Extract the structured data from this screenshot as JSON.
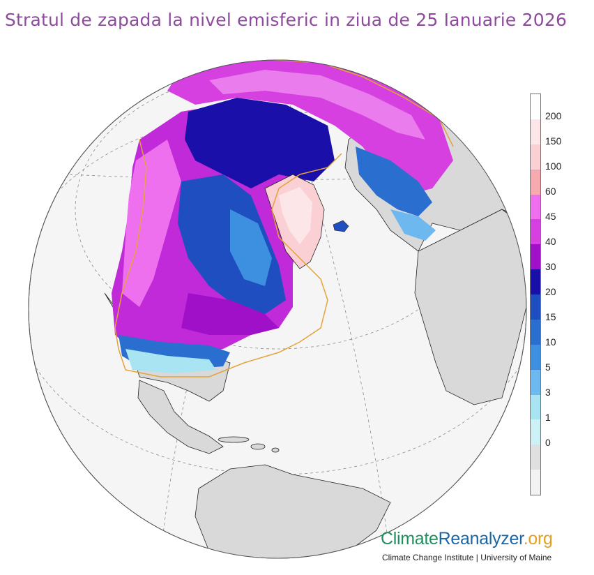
{
  "title": "Stratul de zapada la nivel emisferic in ziua de 25 Ianuarie 2026",
  "legend": {
    "labels": [
      "200",
      "150",
      "100",
      "60",
      "45",
      "40",
      "30",
      "20",
      "15",
      "10",
      "5",
      "3",
      "1",
      "0"
    ],
    "colors": [
      "#ffffff",
      "#fde6e8",
      "#fad0d4",
      "#f5aab0",
      "#ee70ee",
      "#d63fe0",
      "#a010c8",
      "#1a0fa8",
      "#1f4ec0",
      "#2a6fd0",
      "#3d8fdf",
      "#6db8ee",
      "#a8e4f2",
      "#cdf2f5",
      "#e0e0e0",
      "#f2f2f2"
    ]
  },
  "map": {
    "ocean_color": "#f5f5f5",
    "land_color": "#d9d9d9",
    "sea_ice_edge_color": "#e3a33a",
    "graticule_color": "#8a8a8a"
  },
  "brand": {
    "part1": "Climate",
    "part2": "Reanalyzer",
    "part3": ".org",
    "subtitle": "Climate Change Institute | University of Maine"
  }
}
